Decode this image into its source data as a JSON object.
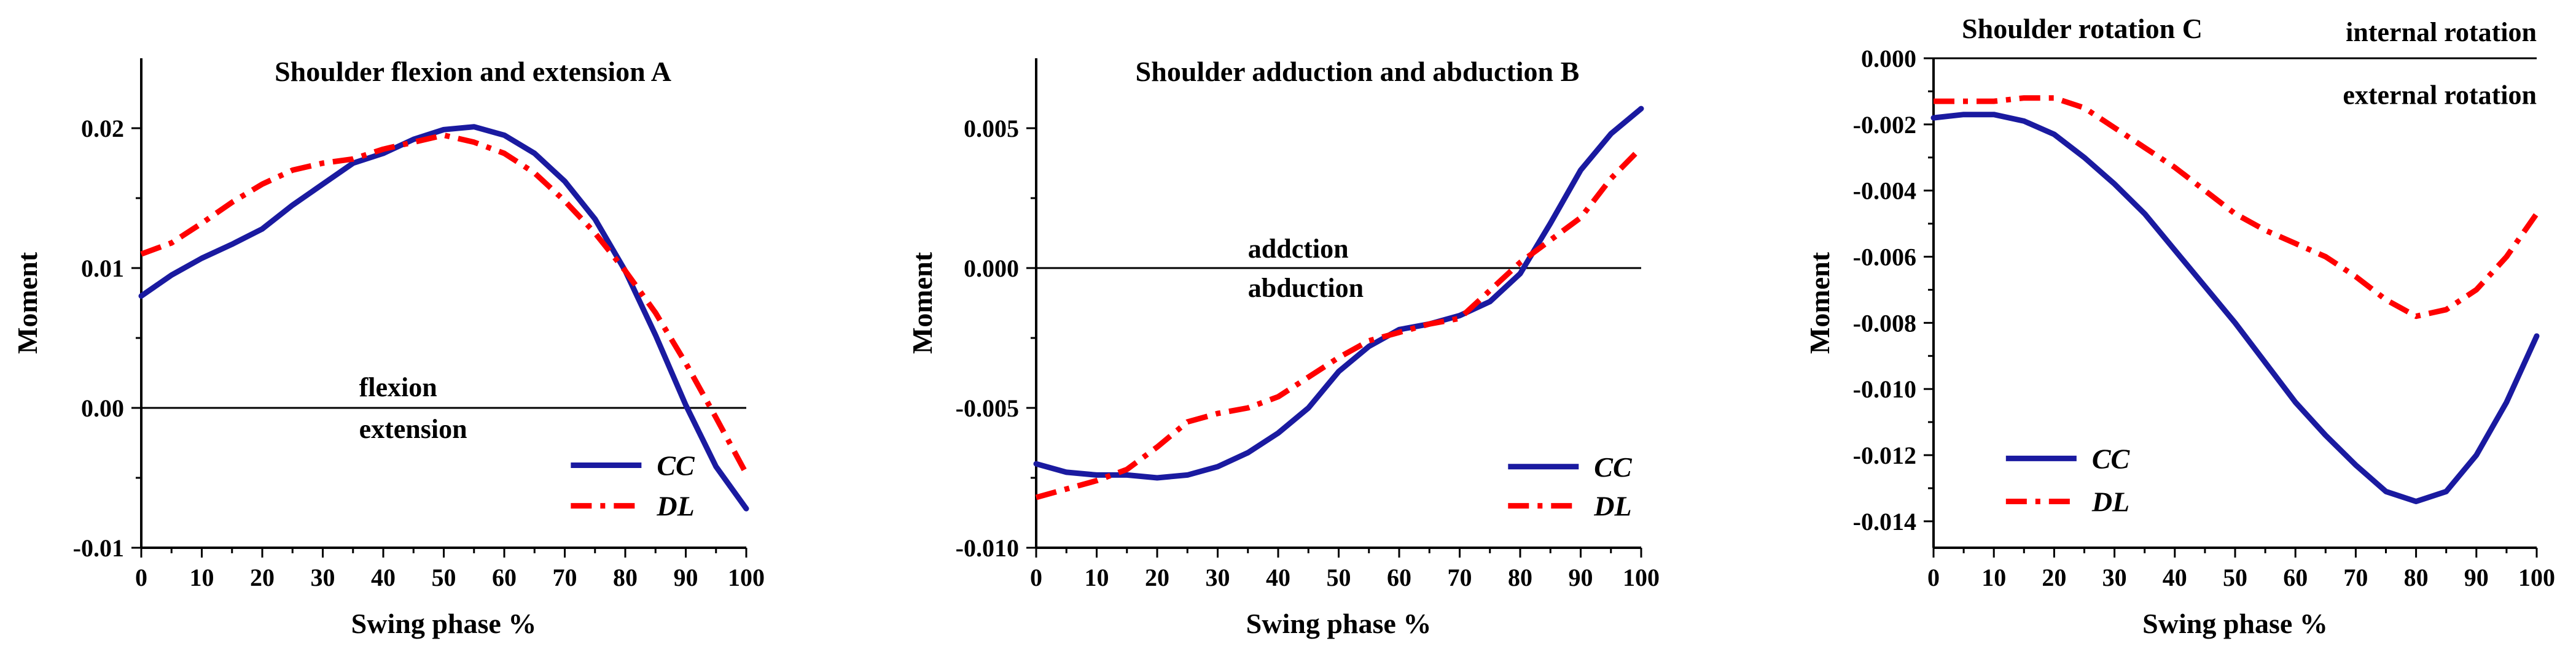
{
  "colors": {
    "CC": "#1a1aa0",
    "DL": "#ff0000",
    "axis": "#000000"
  },
  "chart_data": [
    {
      "type": "line",
      "title": "Shoulder flexion and extension  A",
      "xlabel": "Swing phase %",
      "ylabel": "Moment",
      "xlim": [
        0,
        100
      ],
      "ylim": [
        -0.01,
        0.025
      ],
      "xticks": [
        0,
        10,
        20,
        30,
        40,
        50,
        60,
        70,
        80,
        90,
        100
      ],
      "xtick_labels": [
        "0",
        "10",
        "20",
        "30",
        "40",
        "50",
        "60",
        "70",
        "80",
        "90",
        "100"
      ],
      "yticks": [
        -0.01,
        0.0,
        0.01,
        0.02
      ],
      "ytick_labels": [
        "-0.01",
        "0.00",
        "0.01",
        "0.02"
      ],
      "zero_line": true,
      "annotations": [
        {
          "text": "flexion",
          "x": 36,
          "y": 0.0015
        },
        {
          "text": "extension",
          "x": 36,
          "y": -0.0015
        }
      ],
      "legend": {
        "placement": "bottom-right",
        "x": 71,
        "y1": -0.0041,
        "y2": -0.007
      },
      "series": [
        {
          "name": "CC",
          "style": "solid",
          "x": [
            0,
            5,
            10,
            15,
            20,
            25,
            30,
            35,
            40,
            45,
            50,
            55,
            60,
            65,
            70,
            75,
            80,
            85,
            90,
            95,
            100
          ],
          "y": [
            0.008,
            0.0095,
            0.0107,
            0.0117,
            0.0128,
            0.0145,
            0.016,
            0.0175,
            0.0182,
            0.0192,
            0.0199,
            0.0201,
            0.0195,
            0.0182,
            0.0162,
            0.0135,
            0.0098,
            0.0052,
            0.0002,
            -0.0042,
            -0.0072
          ]
        },
        {
          "name": "DL",
          "style": "dashdot",
          "x": [
            0,
            5,
            10,
            15,
            20,
            25,
            30,
            35,
            40,
            45,
            50,
            55,
            60,
            65,
            70,
            75,
            80,
            85,
            90,
            95,
            100
          ],
          "y": [
            0.011,
            0.0118,
            0.0132,
            0.0147,
            0.016,
            0.017,
            0.0175,
            0.0178,
            0.0185,
            0.019,
            0.0195,
            0.019,
            0.0182,
            0.0168,
            0.0148,
            0.0125,
            0.0098,
            0.0068,
            0.0032,
            -0.0007,
            -0.0047
          ]
        }
      ]
    },
    {
      "type": "line",
      "title": "Shoulder adduction and abduction  B",
      "xlabel": "Swing phase %",
      "ylabel": "Moment",
      "xlim": [
        0,
        100
      ],
      "ylim": [
        -0.01,
        0.0075
      ],
      "xticks": [
        0,
        10,
        20,
        30,
        40,
        50,
        60,
        70,
        80,
        90,
        100
      ],
      "xtick_labels": [
        "0",
        "10",
        "20",
        "30",
        "40",
        "50",
        "60",
        "70",
        "80",
        "90",
        "100"
      ],
      "yticks": [
        -0.01,
        -0.005,
        0.0,
        0.005
      ],
      "ytick_labels": [
        "-0.010",
        "-0.005",
        "0.000",
        "0.005"
      ],
      "zero_line": true,
      "annotations": [
        {
          "text": "addction",
          "x": 35,
          "y": 0.0007
        },
        {
          "text": "abduction",
          "x": 35,
          "y": -0.0007
        }
      ],
      "legend": {
        "placement": "bottom-right",
        "x": 78,
        "y1": -0.0071,
        "y2": -0.0085
      },
      "series": [
        {
          "name": "CC",
          "style": "solid",
          "x": [
            0,
            5,
            10,
            15,
            20,
            25,
            30,
            35,
            40,
            45,
            50,
            55,
            60,
            65,
            70,
            75,
            80,
            85,
            90,
            95,
            100
          ],
          "y": [
            -0.007,
            -0.0073,
            -0.0074,
            -0.0074,
            -0.0075,
            -0.0074,
            -0.0071,
            -0.0066,
            -0.0059,
            -0.005,
            -0.0037,
            -0.0028,
            -0.0022,
            -0.002,
            -0.0017,
            -0.0012,
            -0.0002,
            0.0016,
            0.0035,
            0.0048,
            0.0057
          ]
        },
        {
          "name": "DL",
          "style": "dashdot",
          "x": [
            0,
            5,
            10,
            15,
            20,
            25,
            30,
            35,
            40,
            45,
            50,
            55,
            60,
            65,
            70,
            75,
            80,
            85,
            90,
            95,
            100
          ],
          "y": [
            -0.0082,
            -0.0079,
            -0.0076,
            -0.0072,
            -0.0064,
            -0.0055,
            -0.0052,
            -0.005,
            -0.0046,
            -0.0039,
            -0.0032,
            -0.0026,
            -0.0023,
            -0.002,
            -0.0018,
            -0.0008,
            0.0002,
            0.001,
            0.0018,
            0.0032,
            0.0043
          ]
        }
      ]
    },
    {
      "type": "line",
      "title": "Shoulder rotation  C",
      "xlabel": "Swing phase %",
      "ylabel": "Moment",
      "xlim": [
        0,
        100
      ],
      "ylim": [
        -0.0148,
        0.0
      ],
      "xticks": [
        0,
        10,
        20,
        30,
        40,
        50,
        60,
        70,
        80,
        90,
        100
      ],
      "xtick_labels": [
        "0",
        "10",
        "20",
        "30",
        "40",
        "50",
        "60",
        "70",
        "80",
        "90",
        "100"
      ],
      "yticks": [
        0.0,
        -0.002,
        -0.004,
        -0.006,
        -0.008,
        -0.01,
        -0.012,
        -0.014
      ],
      "ytick_labels": [
        "0.000",
        "-0.002",
        "-0.004",
        "-0.006",
        "-0.008",
        "-0.010",
        "-0.012",
        "-0.014"
      ],
      "zero_line": true,
      "annotations": [
        {
          "text": "internal rotation",
          "x": 100,
          "y": 0.0008,
          "anchor": "end"
        },
        {
          "text": "external rotation",
          "x": 100,
          "y": -0.0011,
          "anchor": "end"
        }
      ],
      "legend": {
        "placement": "bottom-left",
        "x": 12,
        "y1": -0.0121,
        "y2": -0.0134
      },
      "series": [
        {
          "name": "CC",
          "style": "solid",
          "x": [
            0,
            5,
            10,
            15,
            20,
            25,
            30,
            35,
            40,
            45,
            50,
            55,
            60,
            65,
            70,
            75,
            80,
            85,
            90,
            95,
            100
          ],
          "y": [
            -0.0018,
            -0.0017,
            -0.0017,
            -0.0019,
            -0.0023,
            -0.003,
            -0.0038,
            -0.0047,
            -0.0058,
            -0.0069,
            -0.008,
            -0.0092,
            -0.0104,
            -0.0114,
            -0.0123,
            -0.0131,
            -0.0134,
            -0.0131,
            -0.012,
            -0.0104,
            -0.0084
          ]
        },
        {
          "name": "DL",
          "style": "dashdot",
          "x": [
            0,
            5,
            10,
            15,
            20,
            25,
            30,
            35,
            40,
            45,
            50,
            55,
            60,
            65,
            70,
            75,
            80,
            85,
            90,
            95,
            100
          ],
          "y": [
            -0.0013,
            -0.0013,
            -0.0013,
            -0.0012,
            -0.0012,
            -0.0015,
            -0.0021,
            -0.0027,
            -0.0033,
            -0.004,
            -0.0047,
            -0.0052,
            -0.0056,
            -0.006,
            -0.0066,
            -0.0073,
            -0.0078,
            -0.0076,
            -0.007,
            -0.006,
            -0.0047
          ]
        }
      ]
    }
  ]
}
